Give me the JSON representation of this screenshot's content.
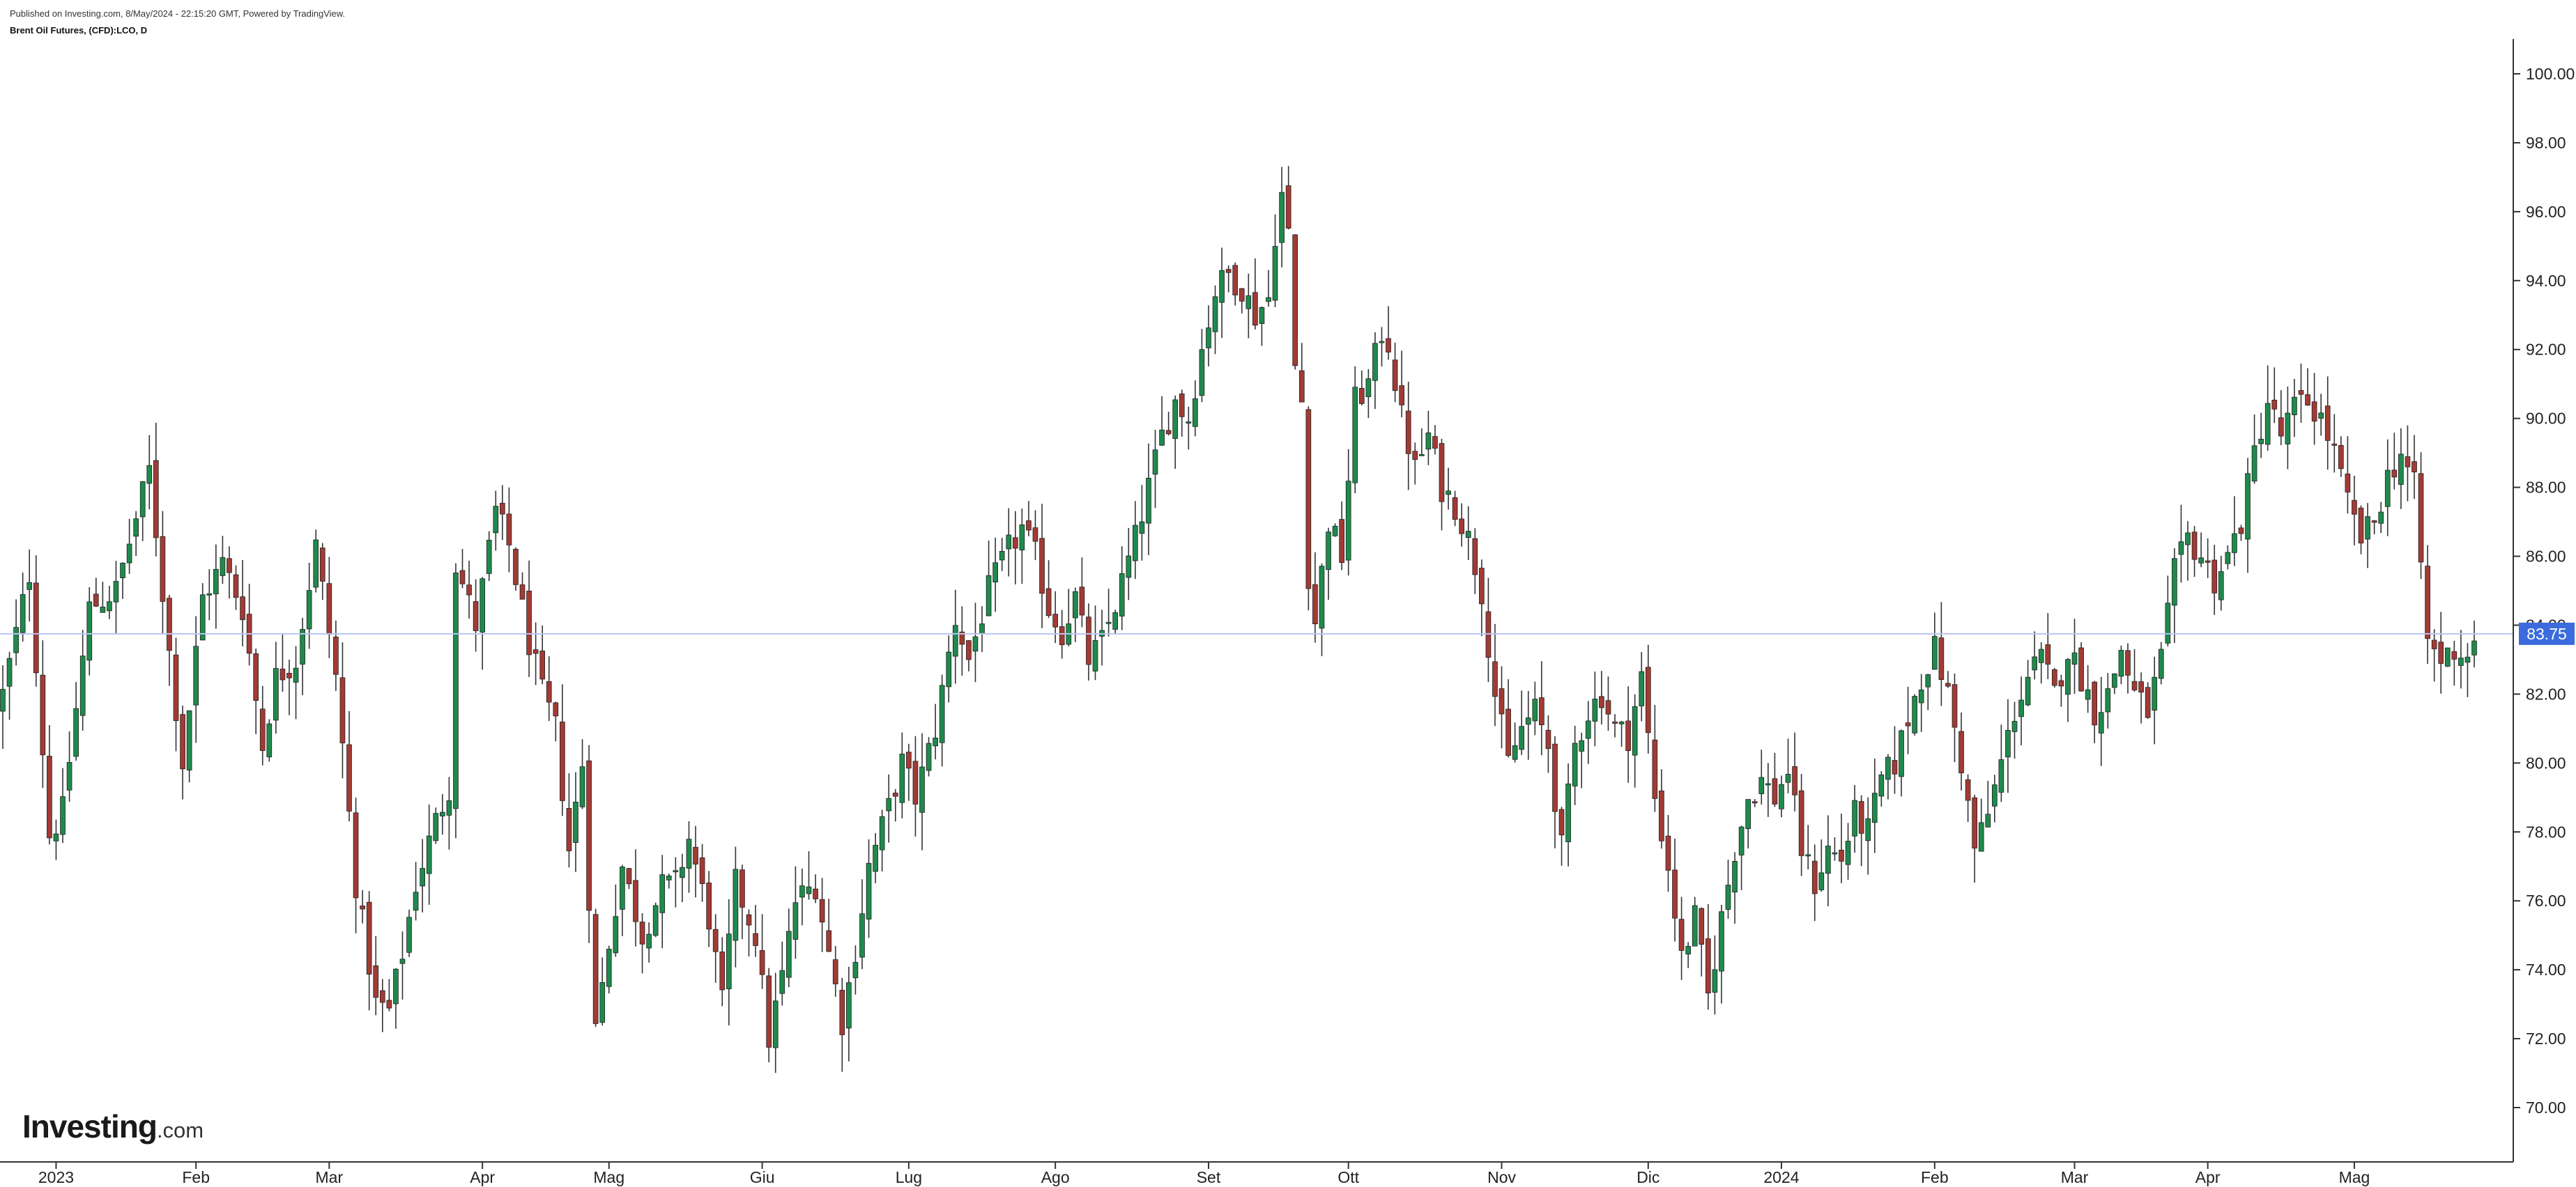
{
  "header": {
    "published": "Published on Investing.com, 8/May/2024 - 22:15:20 GMT, Powered by TradingView.",
    "symbol": "Brent Oil Futures, (CFD):LCO, D"
  },
  "logo": {
    "main": "Investing",
    "suffix": ".com"
  },
  "colors": {
    "up": "#1e8a4c",
    "down": "#a33a34",
    "wick": "#333333",
    "current_line": "#b9c4f0",
    "badge": "#3b6bdc",
    "axis": "#333333"
  },
  "chart_data": {
    "type": "candlestick",
    "title": "Brent Oil Futures, (CFD):LCO, D",
    "ylim": [
      68.6,
      101.0
    ],
    "y_ticks": [
      "100.00",
      "98.00",
      "96.00",
      "94.00",
      "92.00",
      "90.00",
      "88.00",
      "86.00",
      "84.00",
      "82.00",
      "80.00",
      "78.00",
      "76.00",
      "74.00",
      "72.00",
      "70.00"
    ],
    "x_ticks": [
      "2023",
      "Feb",
      "Mar",
      "Apr",
      "Mag",
      "Giu",
      "Lug",
      "Ago",
      "Set",
      "Ott",
      "Nov",
      "Dic",
      "2024",
      "Feb",
      "Mar",
      "Apr",
      "Mag"
    ],
    "current_price": "83.75",
    "close_path": [
      {
        "d": 0,
        "v": 82.0
      },
      {
        "d": 4,
        "v": 85.5
      },
      {
        "d": 7,
        "v": 77.9
      },
      {
        "d": 9,
        "v": 78.6
      },
      {
        "d": 13,
        "v": 84.5
      },
      {
        "d": 17,
        "v": 85.0
      },
      {
        "d": 22,
        "v": 88.5
      },
      {
        "d": 25,
        "v": 83.2
      },
      {
        "d": 27,
        "v": 80.0
      },
      {
        "d": 30,
        "v": 84.8
      },
      {
        "d": 33,
        "v": 85.8
      },
      {
        "d": 36,
        "v": 84.5
      },
      {
        "d": 39,
        "v": 80.5
      },
      {
        "d": 41,
        "v": 82.5
      },
      {
        "d": 44,
        "v": 83.0
      },
      {
        "d": 47,
        "v": 86.3
      },
      {
        "d": 50,
        "v": 82.5
      },
      {
        "d": 53,
        "v": 76.5
      },
      {
        "d": 56,
        "v": 73.0
      },
      {
        "d": 58,
        "v": 72.8
      },
      {
        "d": 60,
        "v": 74.5
      },
      {
        "d": 62,
        "v": 76.5
      },
      {
        "d": 65,
        "v": 78.3
      },
      {
        "d": 67,
        "v": 79.3
      },
      {
        "d": 68,
        "v": 85.8
      },
      {
        "d": 71,
        "v": 84.0
      },
      {
        "d": 74,
        "v": 87.3
      },
      {
        "d": 76,
        "v": 86.3
      },
      {
        "d": 79,
        "v": 83.5
      },
      {
        "d": 81,
        "v": 82.0
      },
      {
        "d": 83,
        "v": 81.0
      },
      {
        "d": 85,
        "v": 77.5
      },
      {
        "d": 87,
        "v": 80.0
      },
      {
        "d": 89,
        "v": 72.3
      },
      {
        "d": 91,
        "v": 74.8
      },
      {
        "d": 93,
        "v": 77.0
      },
      {
        "d": 96,
        "v": 75.0
      },
      {
        "d": 99,
        "v": 76.4
      },
      {
        "d": 101,
        "v": 76.5
      },
      {
        "d": 103,
        "v": 77.8
      },
      {
        "d": 106,
        "v": 75.5
      },
      {
        "d": 108,
        "v": 73.0
      },
      {
        "d": 110,
        "v": 76.5
      },
      {
        "d": 113,
        "v": 75.0
      },
      {
        "d": 115,
        "v": 72.0
      },
      {
        "d": 117,
        "v": 73.8
      },
      {
        "d": 119,
        "v": 76.0
      },
      {
        "d": 122,
        "v": 76.5
      },
      {
        "d": 124,
        "v": 74.5
      },
      {
        "d": 126,
        "v": 72.5
      },
      {
        "d": 128,
        "v": 74.6
      },
      {
        "d": 130,
        "v": 77.0
      },
      {
        "d": 133,
        "v": 78.7
      },
      {
        "d": 135,
        "v": 80.0
      },
      {
        "d": 137,
        "v": 79.0
      },
      {
        "d": 140,
        "v": 81.0
      },
      {
        "d": 143,
        "v": 84.2
      },
      {
        "d": 145,
        "v": 83.0
      },
      {
        "d": 148,
        "v": 85.0
      },
      {
        "d": 151,
        "v": 86.2
      },
      {
        "d": 153,
        "v": 86.8
      },
      {
        "d": 155,
        "v": 86.0
      },
      {
        "d": 157,
        "v": 84.5
      },
      {
        "d": 159,
        "v": 83.8
      },
      {
        "d": 161,
        "v": 84.8
      },
      {
        "d": 163,
        "v": 83.0
      },
      {
        "d": 165,
        "v": 83.5
      },
      {
        "d": 167,
        "v": 84.6
      },
      {
        "d": 170,
        "v": 86.5
      },
      {
        "d": 172,
        "v": 88.0
      },
      {
        "d": 174,
        "v": 89.5
      },
      {
        "d": 176,
        "v": 90.5
      },
      {
        "d": 178,
        "v": 90.0
      },
      {
        "d": 180,
        "v": 92.0
      },
      {
        "d": 182,
        "v": 93.7
      },
      {
        "d": 184,
        "v": 94.2
      },
      {
        "d": 186,
        "v": 93.8
      },
      {
        "d": 188,
        "v": 93.0
      },
      {
        "d": 190,
        "v": 93.5
      },
      {
        "d": 191,
        "v": 95.4
      },
      {
        "d": 192,
        "v": 96.5
      },
      {
        "d": 193,
        "v": 95.3
      },
      {
        "d": 194,
        "v": 91.5
      },
      {
        "d": 195,
        "v": 90.5
      },
      {
        "d": 196,
        "v": 85.5
      },
      {
        "d": 197,
        "v": 84.1
      },
      {
        "d": 199,
        "v": 87.0
      },
      {
        "d": 201,
        "v": 86.0
      },
      {
        "d": 203,
        "v": 90.5
      },
      {
        "d": 205,
        "v": 91.0
      },
      {
        "d": 207,
        "v": 92.5
      },
      {
        "d": 208,
        "v": 92.2
      },
      {
        "d": 210,
        "v": 90.0
      },
      {
        "d": 212,
        "v": 88.5
      },
      {
        "d": 214,
        "v": 89.5
      },
      {
        "d": 216,
        "v": 88.0
      },
      {
        "d": 218,
        "v": 87.5
      },
      {
        "d": 220,
        "v": 86.5
      },
      {
        "d": 222,
        "v": 85.0
      },
      {
        "d": 224,
        "v": 82.0
      },
      {
        "d": 226,
        "v": 80.0
      },
      {
        "d": 228,
        "v": 81.0
      },
      {
        "d": 230,
        "v": 81.5
      },
      {
        "d": 232,
        "v": 80.5
      },
      {
        "d": 234,
        "v": 77.5
      },
      {
        "d": 236,
        "v": 80.5
      },
      {
        "d": 238,
        "v": 81.5
      },
      {
        "d": 240,
        "v": 82.0
      },
      {
        "d": 242,
        "v": 81.0
      },
      {
        "d": 244,
        "v": 80.8
      },
      {
        "d": 246,
        "v": 82.5
      },
      {
        "d": 248,
        "v": 79.0
      },
      {
        "d": 250,
        "v": 77.0
      },
      {
        "d": 252,
        "v": 74.3
      },
      {
        "d": 254,
        "v": 75.5
      },
      {
        "d": 256,
        "v": 73.2
      },
      {
        "d": 258,
        "v": 75.5
      },
      {
        "d": 260,
        "v": 77.5
      },
      {
        "d": 262,
        "v": 79.0
      },
      {
        "d": 264,
        "v": 79.5
      },
      {
        "d": 266,
        "v": 79.0
      },
      {
        "d": 268,
        "v": 79.8
      },
      {
        "d": 270,
        "v": 77.5
      },
      {
        "d": 272,
        "v": 76.5
      },
      {
        "d": 274,
        "v": 77.5
      },
      {
        "d": 276,
        "v": 77.2
      },
      {
        "d": 278,
        "v": 78.5
      },
      {
        "d": 280,
        "v": 78.0
      },
      {
        "d": 282,
        "v": 79.5
      },
      {
        "d": 284,
        "v": 80.0
      },
      {
        "d": 286,
        "v": 81.3
      },
      {
        "d": 288,
        "v": 82.5
      },
      {
        "d": 290,
        "v": 83.3
      },
      {
        "d": 292,
        "v": 82.0
      },
      {
        "d": 294,
        "v": 80.0
      },
      {
        "d": 296,
        "v": 77.5
      },
      {
        "d": 298,
        "v": 78.5
      },
      {
        "d": 300,
        "v": 80.0
      },
      {
        "d": 302,
        "v": 81.5
      },
      {
        "d": 304,
        "v": 82.5
      },
      {
        "d": 306,
        "v": 83.0
      },
      {
        "d": 308,
        "v": 82.0
      },
      {
        "d": 310,
        "v": 83.3
      },
      {
        "d": 312,
        "v": 82.5
      },
      {
        "d": 314,
        "v": 81.5
      },
      {
        "d": 316,
        "v": 82.0
      },
      {
        "d": 318,
        "v": 83.3
      },
      {
        "d": 320,
        "v": 82.0
      },
      {
        "d": 322,
        "v": 81.5
      },
      {
        "d": 324,
        "v": 83.0
      },
      {
        "d": 326,
        "v": 85.5
      },
      {
        "d": 328,
        "v": 86.5
      },
      {
        "d": 330,
        "v": 86.0
      },
      {
        "d": 332,
        "v": 85.3
      },
      {
        "d": 334,
        "v": 86.0
      },
      {
        "d": 336,
        "v": 87.0
      },
      {
        "d": 338,
        "v": 89.0
      },
      {
        "d": 340,
        "v": 90.5
      },
      {
        "d": 342,
        "v": 89.5
      },
      {
        "d": 344,
        "v": 90.3
      },
      {
        "d": 346,
        "v": 90.5
      },
      {
        "d": 348,
        "v": 90.0
      },
      {
        "d": 350,
        "v": 89.0
      },
      {
        "d": 352,
        "v": 87.5
      },
      {
        "d": 354,
        "v": 86.5
      },
      {
        "d": 356,
        "v": 87.0
      },
      {
        "d": 358,
        "v": 88.3
      },
      {
        "d": 360,
        "v": 89.0
      },
      {
        "d": 362,
        "v": 88.0
      },
      {
        "d": 363,
        "v": 85.8
      },
      {
        "d": 364,
        "v": 83.5
      },
      {
        "d": 366,
        "v": 83.0
      },
      {
        "d": 368,
        "v": 83.3
      },
      {
        "d": 370,
        "v": 83.1
      },
      {
        "d": 371,
        "v": 83.75
      }
    ]
  }
}
